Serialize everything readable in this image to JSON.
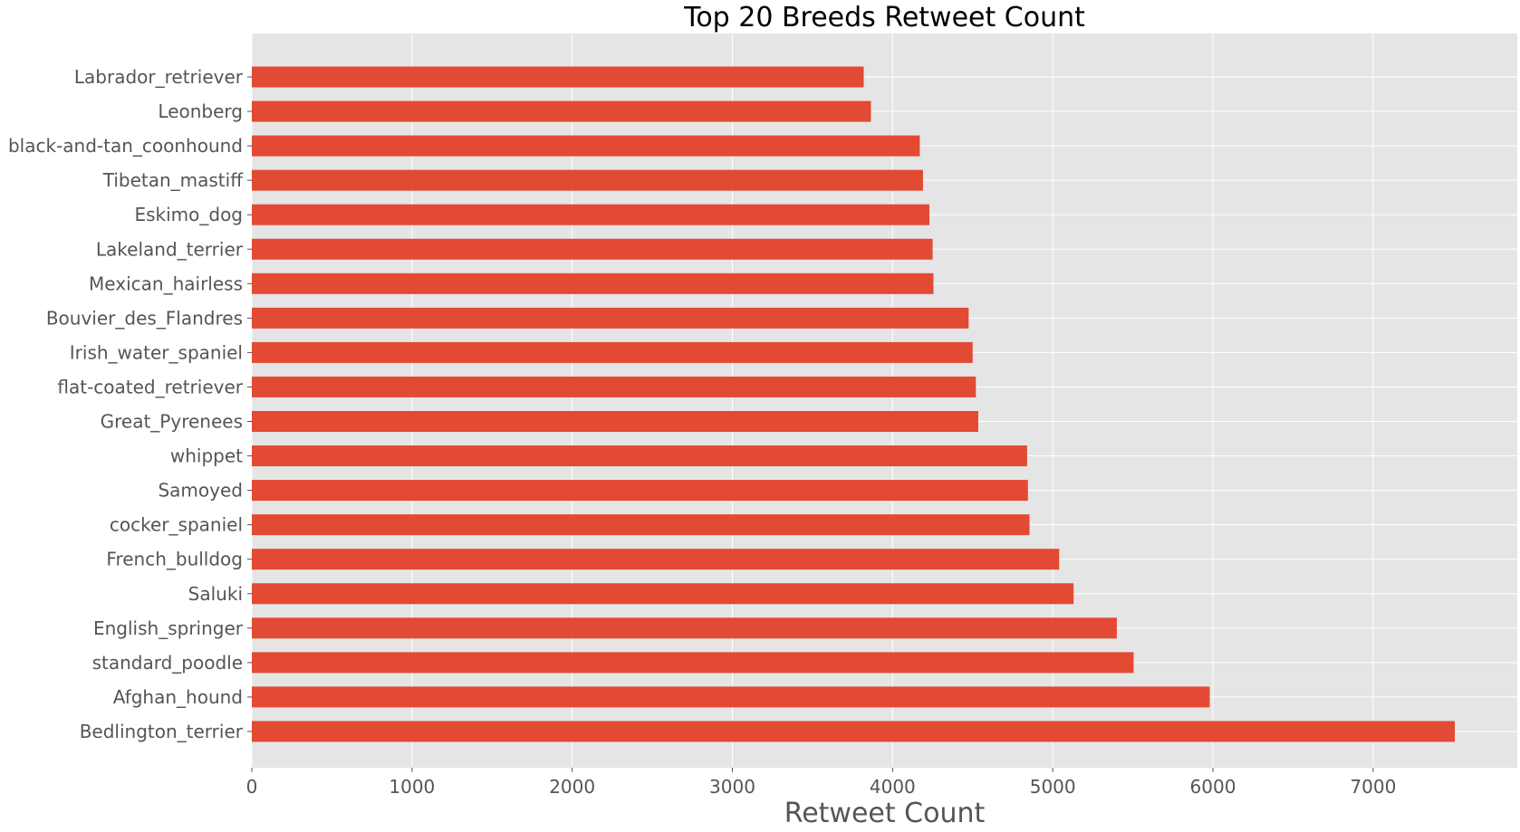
{
  "chart_data": {
    "type": "bar",
    "orientation": "horizontal",
    "title": "Top 20 Breeds Retweet Count",
    "xlabel": "Retweet Count",
    "ylabel": "",
    "xlim": [
      0,
      7900
    ],
    "xticks": [
      0,
      1000,
      2000,
      3000,
      4000,
      5000,
      6000,
      7000
    ],
    "grid": true,
    "bar_color": "#E24A33",
    "background_color": "#E5E5E5",
    "categories": [
      "Labrador_retriever",
      "Leonberg",
      "black-and-tan_coonhound",
      "Tibetan_mastiff",
      "Eskimo_dog",
      "Lakeland_terrier",
      "Mexican_hairless",
      "Bouvier_des_Flandres",
      "Irish_water_spaniel",
      "flat-coated_retriever",
      "Great_Pyrenees",
      "whippet",
      "Samoyed",
      "cocker_spaniel",
      "French_bulldog",
      "Saluki",
      "English_springer",
      "standard_poodle",
      "Afghan_hound",
      "Bedlington_terrier"
    ],
    "values": [
      3820,
      3865,
      4170,
      4190,
      4230,
      4250,
      4255,
      4475,
      4500,
      4520,
      4535,
      4840,
      4845,
      4855,
      5040,
      5130,
      5400,
      5505,
      5980,
      7510
    ]
  }
}
